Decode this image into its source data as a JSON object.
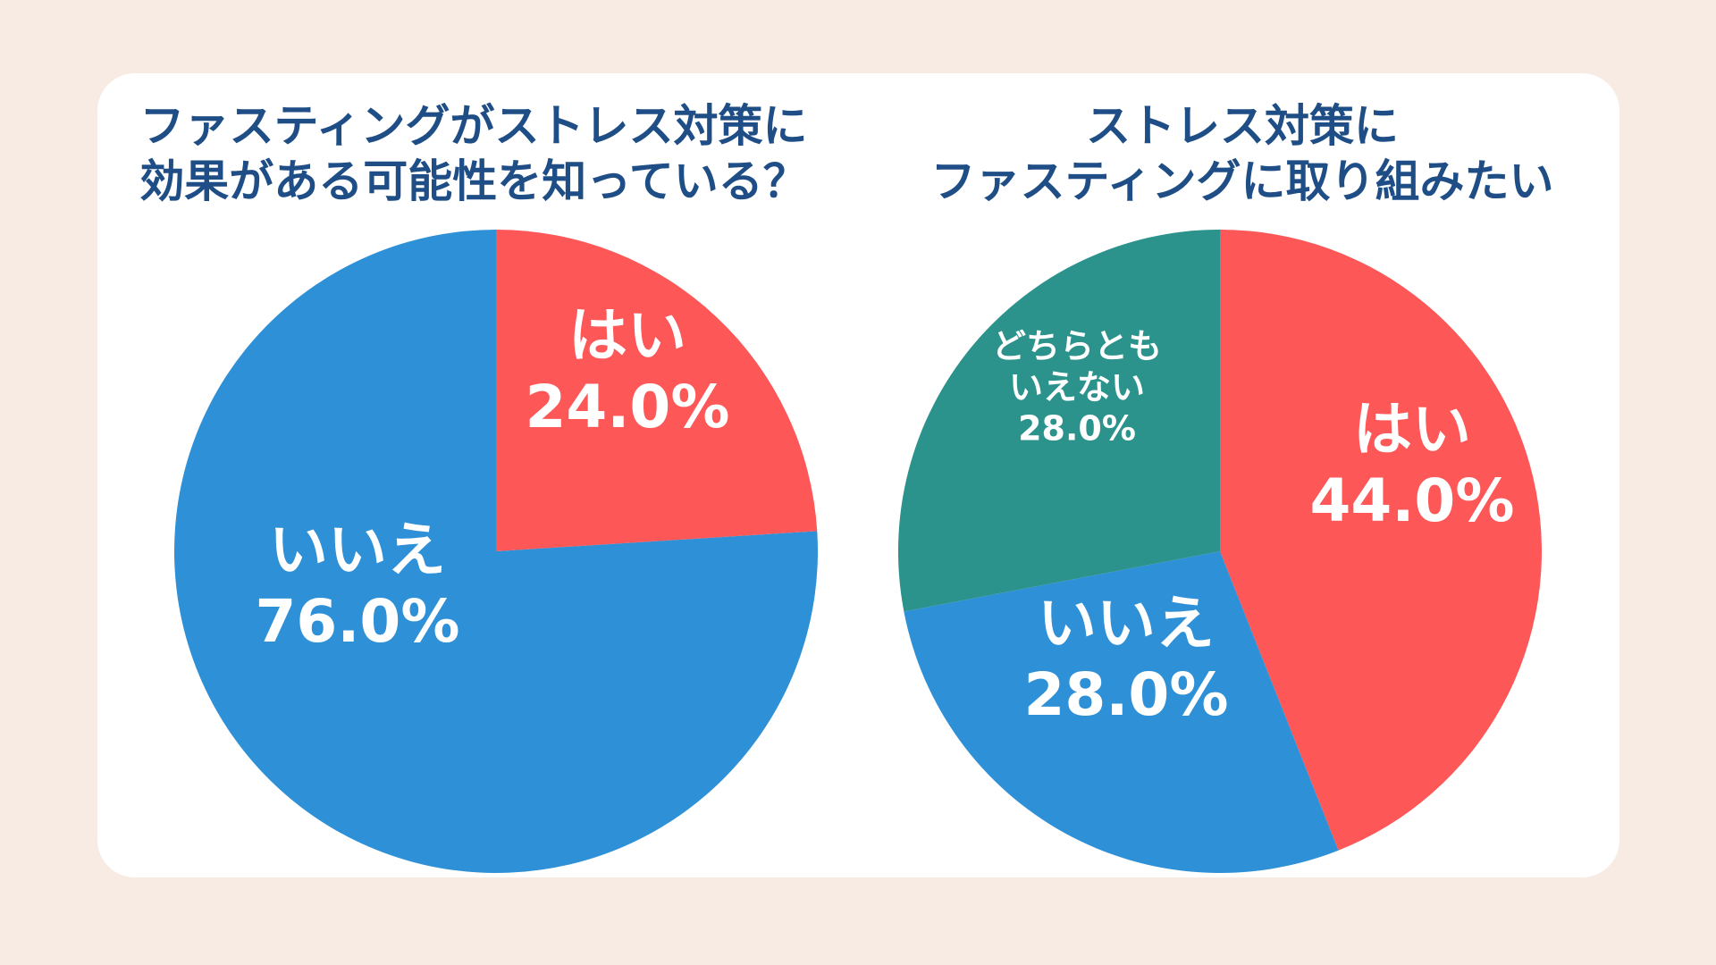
{
  "chart_data": [
    {
      "type": "pie",
      "title": "ファスティングがストレス対策に\n効果がある可能性を知っている？",
      "slices": [
        {
          "label": "はい",
          "value": 24.0,
          "display": "24.0%",
          "color": "#fd5757"
        },
        {
          "label": "いいえ",
          "value": 76.0,
          "display": "76.0%",
          "color": "#2e90d6"
        }
      ]
    },
    {
      "type": "pie",
      "title": "ストレス対策に\nファスティングに取り組みたい",
      "slices": [
        {
          "label": "はい",
          "value": 44.0,
          "display": "44.0%",
          "color": "#fd5757"
        },
        {
          "label": "いいえ",
          "value": 28.0,
          "display": "28.0%",
          "color": "#2e90d6"
        },
        {
          "label": "どちらとも\nいえない",
          "value": 28.0,
          "display": "28.0%",
          "color": "#2b928c"
        }
      ]
    }
  ]
}
